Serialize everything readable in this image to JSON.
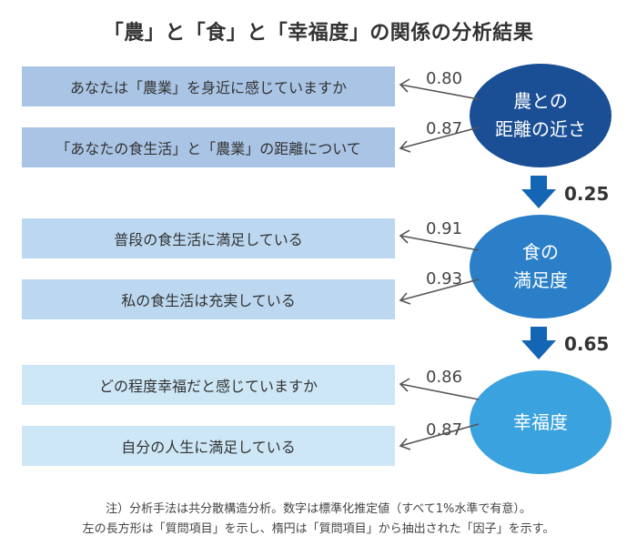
{
  "title": "「農」と「食」と「幸福度」の関係の分析結果",
  "groups": [
    {
      "factor": {
        "lines": [
          "農との",
          "距離の近さ"
        ],
        "color": "#1a4f95"
      },
      "questions": [
        {
          "text": "あなたは「農業」を身近に感じていますか",
          "loading": "0.80",
          "color": "#a9c4e4"
        },
        {
          "text": "「あなたの食生活」と「農業」の距離について",
          "loading": "0.87",
          "color": "#a9c4e4"
        }
      ]
    },
    {
      "factor": {
        "lines": [
          "食の",
          "満足度"
        ],
        "color": "#2a7fc8"
      },
      "questions": [
        {
          "text": "普段の食生活に満足している",
          "loading": "0.91",
          "color": "#bcd8f0"
        },
        {
          "text": "私の食生活は充実している",
          "loading": "0.93",
          "color": "#bcd8f0"
        }
      ]
    },
    {
      "factor": {
        "lines": [
          "幸福度"
        ],
        "color": "#3aa2df"
      },
      "questions": [
        {
          "text": "どの程度幸福だと感じていますか",
          "loading": "0.86",
          "color": "#cde7f7"
        },
        {
          "text": "自分の人生に満足している",
          "loading": "0.87",
          "color": "#cde7f7"
        }
      ]
    }
  ],
  "paths": [
    {
      "value": "0.25"
    },
    {
      "value": "0.65"
    }
  ],
  "notes": [
    "注）分析手法は共分散構造分析。数字は標準化推定値（すべて1%水準で有意）。",
    "左の長方形は「質問項目」を示し、楕円は「質問項目」から抽出された「因子」を示す。"
  ],
  "colors": {
    "arrow_line": "#555555",
    "path_arrow": "#1565b5"
  }
}
